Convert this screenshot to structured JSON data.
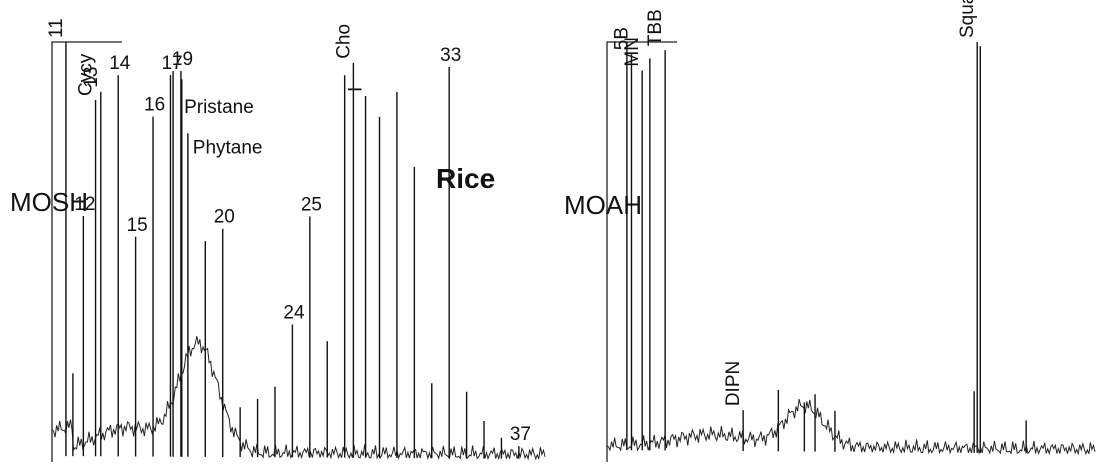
{
  "chart_data": [
    {
      "type": "line",
      "title": "MOSH",
      "subtitle": "Rice",
      "peak_labels": [
        {
          "text": "11",
          "x": 11,
          "rotated": true
        },
        {
          "text": "Cycy",
          "x": 12.7,
          "rotated": true
        },
        {
          "text": "12",
          "x": 12,
          "rotated": false
        },
        {
          "text": "13",
          "x": 13,
          "rotated": true
        },
        {
          "text": "14",
          "x": 14,
          "rotated": false
        },
        {
          "text": "15",
          "x": 15,
          "rotated": false
        },
        {
          "text": "16",
          "x": 16,
          "rotated": false
        },
        {
          "text": "17",
          "x": 17,
          "rotated": false
        },
        {
          "text": "19",
          "x": 17.6,
          "rotated": false
        },
        {
          "text": "Pristane",
          "x": 17.15,
          "rotated": false
        },
        {
          "text": "Phytane",
          "x": 17.65,
          "rotated": false
        },
        {
          "text": "20",
          "x": 20,
          "rotated": false
        },
        {
          "text": "24",
          "x": 24,
          "rotated": false
        },
        {
          "text": "25",
          "x": 25,
          "rotated": false
        },
        {
          "text": "Cho",
          "x": 27.5,
          "rotated": true
        },
        {
          "text": "I",
          "x": 28.2,
          "rotated": true
        },
        {
          "text": "33",
          "x": 33,
          "rotated": false
        },
        {
          "text": "37",
          "x": 37,
          "rotated": false
        }
      ],
      "peaks": [
        {
          "x": 11,
          "y": 1.0
        },
        {
          "x": 11.4,
          "y": 0.2
        },
        {
          "x": 12,
          "y": 0.58
        },
        {
          "x": 12.7,
          "y": 0.86
        },
        {
          "x": 13,
          "y": 0.88
        },
        {
          "x": 14,
          "y": 0.92
        },
        {
          "x": 15,
          "y": 0.53
        },
        {
          "x": 16,
          "y": 0.82
        },
        {
          "x": 17,
          "y": 0.92
        },
        {
          "x": 17.15,
          "y": 0.93
        },
        {
          "x": 17.6,
          "y": 0.93
        },
        {
          "x": 17.65,
          "y": 0.91
        },
        {
          "x": 18,
          "y": 0.78
        },
        {
          "x": 19,
          "y": 0.52
        },
        {
          "x": 20,
          "y": 0.55
        },
        {
          "x": 21,
          "y": 0.12
        },
        {
          "x": 22,
          "y": 0.14
        },
        {
          "x": 23,
          "y": 0.17
        },
        {
          "x": 24,
          "y": 0.32
        },
        {
          "x": 25,
          "y": 0.58
        },
        {
          "x": 26,
          "y": 0.28
        },
        {
          "x": 27,
          "y": 0.92
        },
        {
          "x": 27.5,
          "y": 0.95
        },
        {
          "x": 28.2,
          "y": 0.87
        },
        {
          "x": 29,
          "y": 0.82
        },
        {
          "x": 30,
          "y": 0.88
        },
        {
          "x": 31,
          "y": 0.7
        },
        {
          "x": 32,
          "y": 0.18
        },
        {
          "x": 33,
          "y": 0.94
        },
        {
          "x": 34,
          "y": 0.16
        },
        {
          "x": 35,
          "y": 0.09
        },
        {
          "x": 36,
          "y": 0.05
        },
        {
          "x": 37,
          "y": 0.03
        }
      ]
    },
    {
      "type": "line",
      "title": "MOAH",
      "peak_labels": [
        {
          "text": "5B",
          "x": 5.2,
          "rotated": true
        },
        {
          "text": "MN",
          "x": 5.9,
          "rotated": true
        },
        {
          "text": "TBB",
          "x": 7.4,
          "rotated": true
        },
        {
          "text": "DIPN",
          "x": 12.5,
          "rotated": true
        },
        {
          "text": "Squalene",
          "x": 27.8,
          "rotated": true
        }
      ],
      "peaks": [
        {
          "x": 4.9,
          "y": 1.0
        },
        {
          "x": 5.2,
          "y": 0.97
        },
        {
          "x": 5.9,
          "y": 0.93
        },
        {
          "x": 6.4,
          "y": 0.96
        },
        {
          "x": 7.4,
          "y": 0.98
        },
        {
          "x": 12.5,
          "y": 0.1
        },
        {
          "x": 14.8,
          "y": 0.15
        },
        {
          "x": 16.5,
          "y": 0.12
        },
        {
          "x": 17.2,
          "y": 0.14
        },
        {
          "x": 18.5,
          "y": 0.1
        },
        {
          "x": 27.6,
          "y": 0.15
        },
        {
          "x": 27.8,
          "y": 1.0
        },
        {
          "x": 28.0,
          "y": 0.99
        },
        {
          "x": 31.0,
          "y": 0.08
        }
      ]
    }
  ]
}
